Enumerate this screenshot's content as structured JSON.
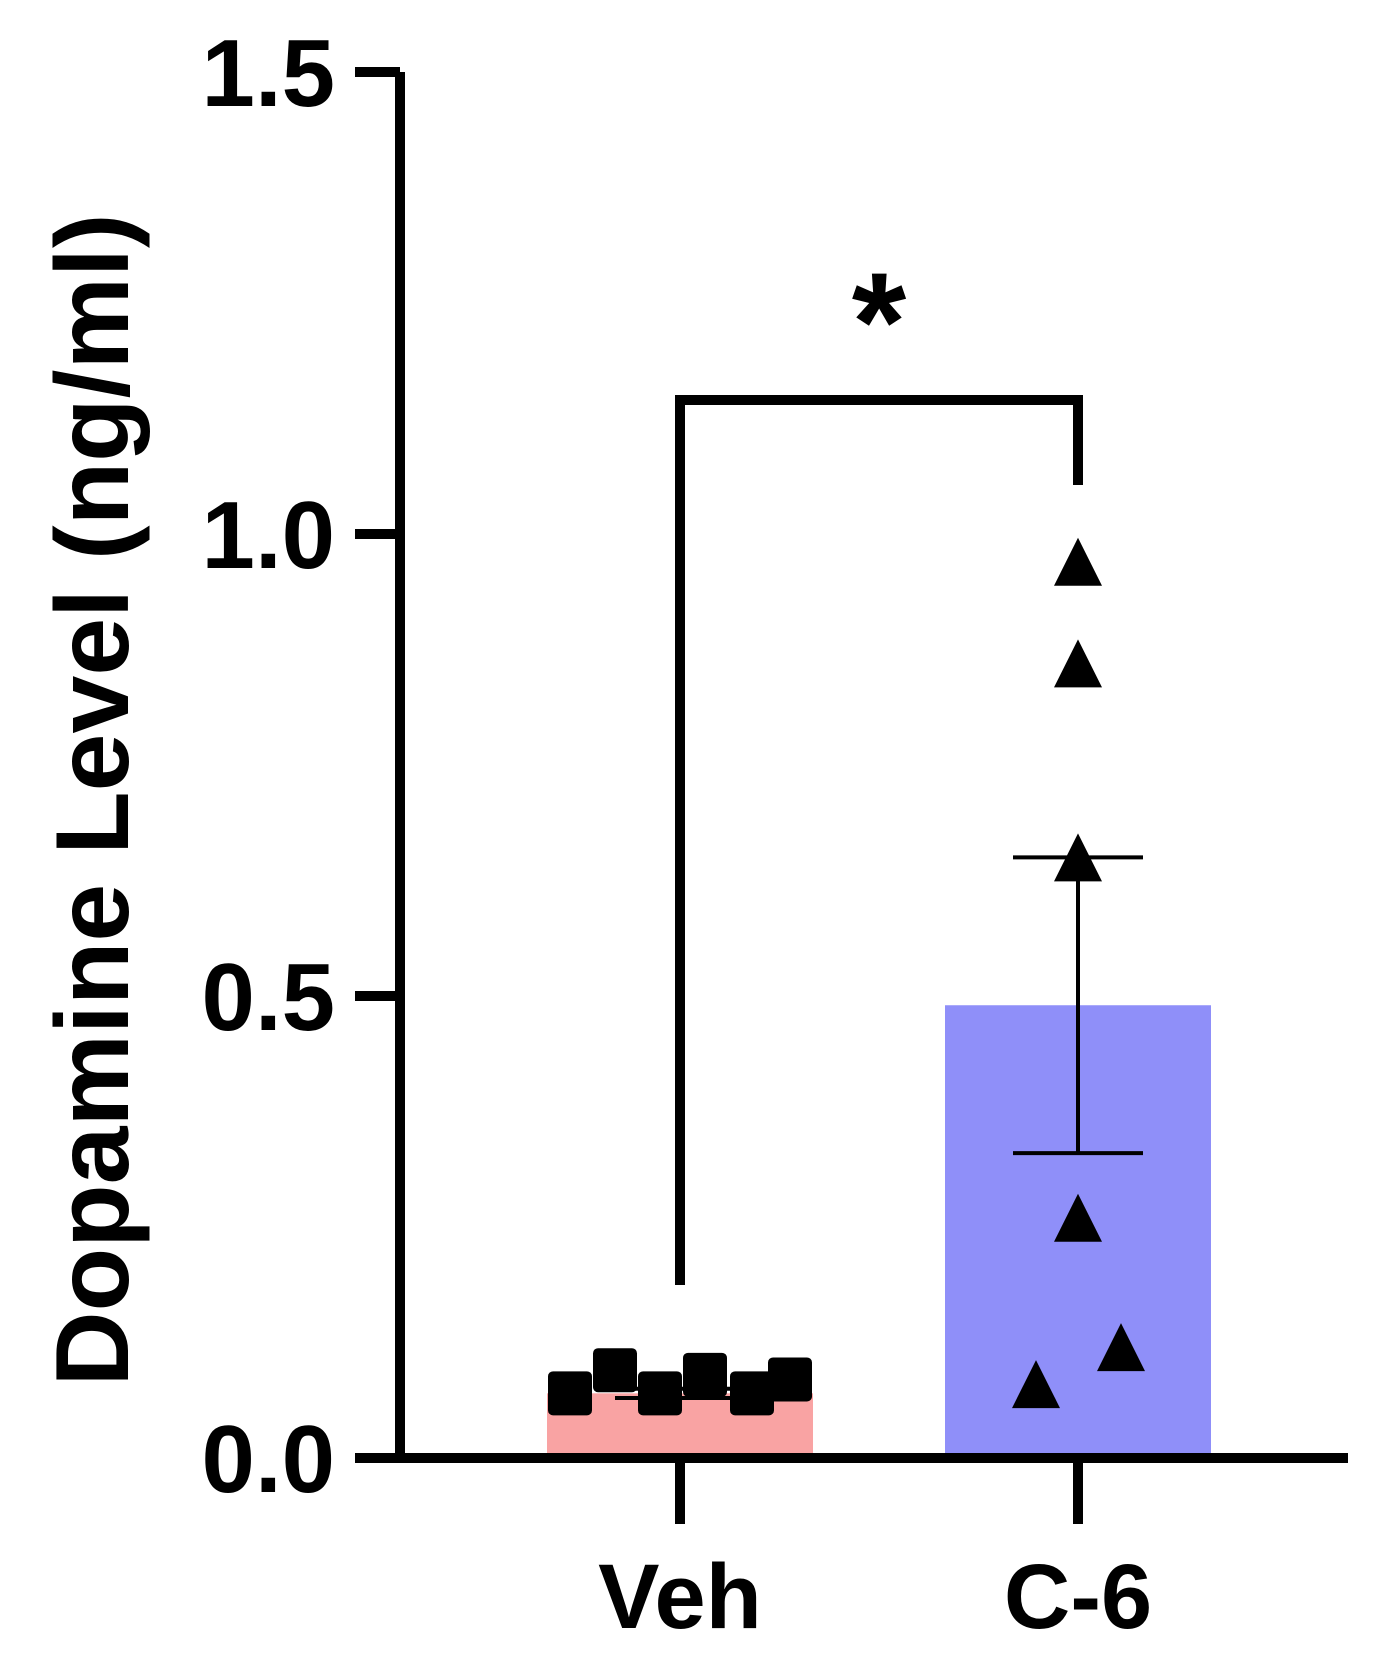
{
  "chart_data": {
    "type": "bar",
    "categories": [
      "Veh",
      "C-6"
    ],
    "ylabel": "Dopamine Level (ng/ml)",
    "xlabel": "",
    "ylim": [
      0,
      1.5
    ],
    "yticks": [
      0.0,
      0.5,
      1.0,
      1.5
    ],
    "ytick_labels": [
      "0.0",
      "0.5",
      "1.0",
      "1.5"
    ],
    "grid": false,
    "bars": [
      {
        "category": "Veh",
        "mean": 0.07,
        "color": "#F9A3A3",
        "sem": [
          0.065,
          0.075
        ]
      },
      {
        "category": "C-6",
        "mean": 0.49,
        "color": "#8F8FF9",
        "sem": [
          0.33,
          0.65
        ]
      }
    ],
    "points": [
      {
        "category": "Veh",
        "marker": "square",
        "values": [
          0.07,
          0.095,
          0.07,
          0.09,
          0.07,
          0.085
        ]
      },
      {
        "category": "C-6",
        "marker": "triangle",
        "values": [
          0.97,
          0.86,
          0.65,
          0.26,
          0.12,
          0.08
        ]
      }
    ],
    "annotations": [
      {
        "type": "significance",
        "between": [
          "Veh",
          "C-6"
        ],
        "label": "*"
      }
    ]
  }
}
